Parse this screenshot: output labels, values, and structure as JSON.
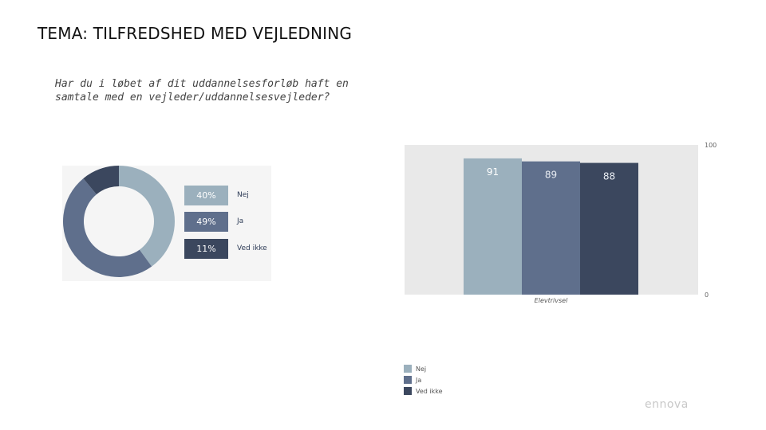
{
  "page": {
    "title": "TEMA: TILFREDSHED MED VEJLEDNING",
    "question": "Har du i løbet af dit uddannelsesforløb haft en samtale med en vejleder/uddannelsesvejleder?",
    "brand": "ennova"
  },
  "colors": {
    "nej": "#9bb0bd",
    "ja": "#5f6f8c",
    "ved_ikke": "#3b475e",
    "plot_bg": "#e9e9e9"
  },
  "chart_data": [
    {
      "type": "pie",
      "categories": [
        "Nej",
        "Ja",
        "Ved ikke"
      ],
      "values": [
        40,
        49,
        11
      ],
      "value_labels": [
        "40%",
        "49%",
        "11%"
      ]
    },
    {
      "type": "bar",
      "categories": [
        "Elevtrivsel"
      ],
      "series": [
        {
          "name": "Nej",
          "values": [
            91
          ]
        },
        {
          "name": "Ja",
          "values": [
            89
          ]
        },
        {
          "name": "Ved ikke",
          "values": [
            88
          ]
        }
      ],
      "ylim": [
        0,
        100
      ],
      "yticks": [
        "100",
        "0"
      ],
      "legend": "bottom-left"
    }
  ]
}
